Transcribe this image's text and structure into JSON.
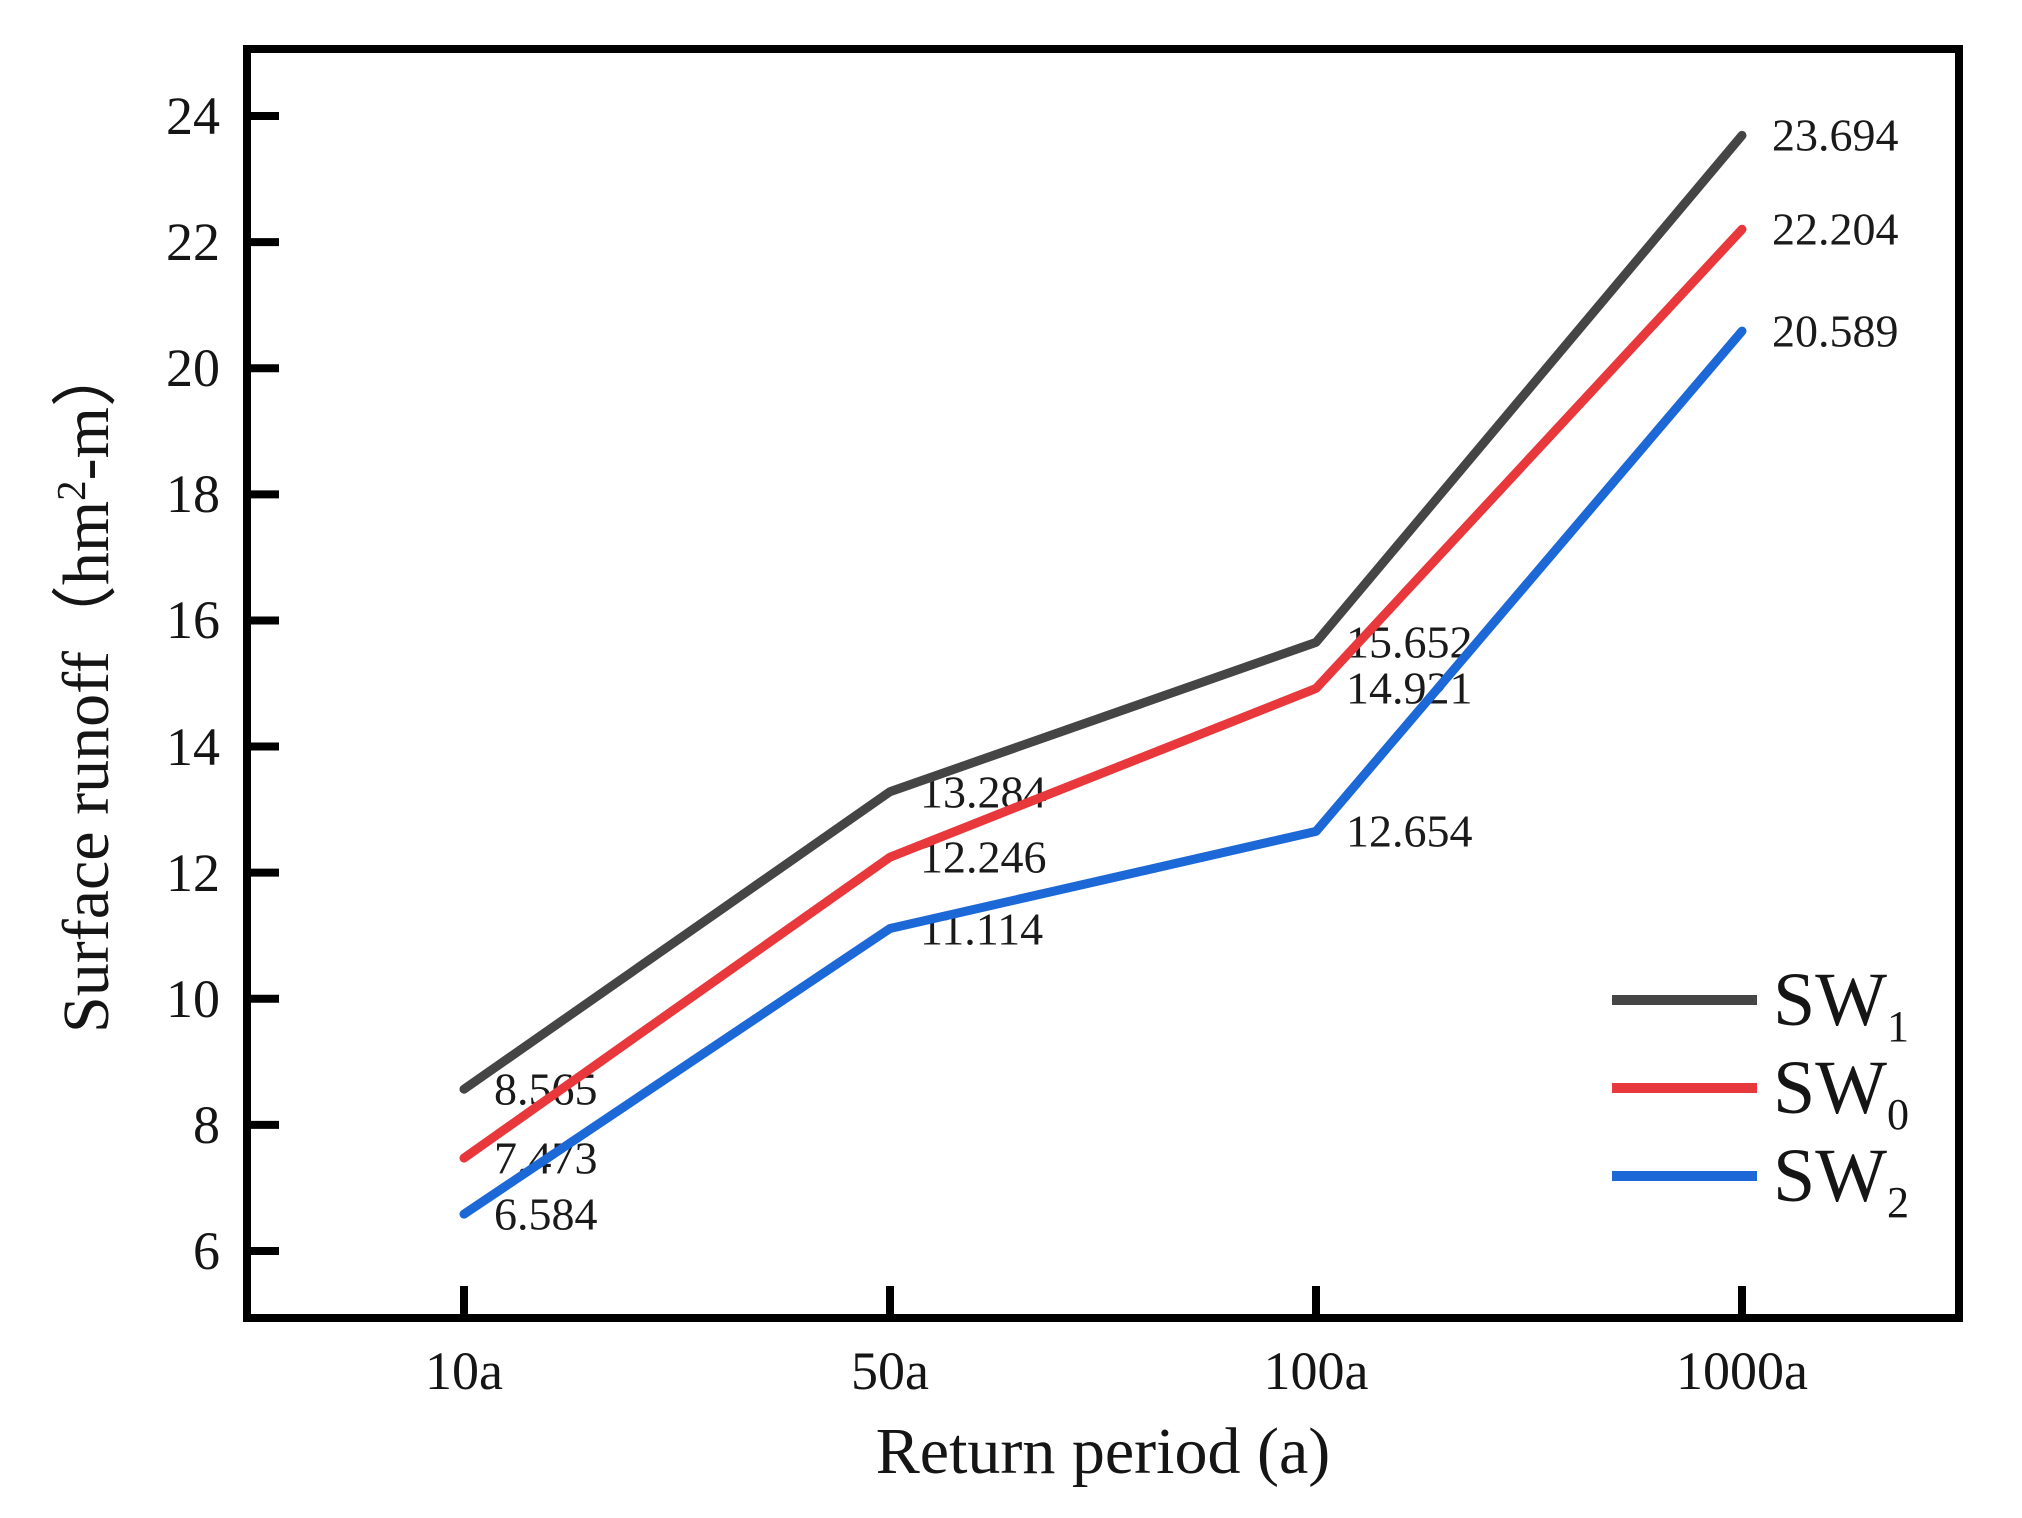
{
  "figure": {
    "x_axis_title": "Return period (a)",
    "y_axis_title_prefix": "Surface runoff（hm",
    "y_axis_title_sup": "2",
    "y_axis_title_suffix": "-m）"
  },
  "chart_data": {
    "type": "line",
    "title": "",
    "xlabel": "Return period (a)",
    "ylabel": "Surface runoff（hm²-m）",
    "categories": [
      "10a",
      "50a",
      "100a",
      "1000a"
    ],
    "series": [
      {
        "name": "SW",
        "sub": "1",
        "color": "#454545",
        "values": [
          8.565,
          13.284,
          15.652,
          23.694
        ]
      },
      {
        "name": "SW",
        "sub": "0",
        "color": "#e8383c",
        "values": [
          7.473,
          12.246,
          14.921,
          22.204
        ]
      },
      {
        "name": "SW",
        "sub": "2",
        "color": "#1c68d6",
        "values": [
          6.584,
          11.114,
          12.654,
          20.589
        ]
      }
    ],
    "ylim": [
      5,
      25
    ],
    "y_ticks": [
      6,
      8,
      10,
      12,
      14,
      16,
      18,
      20,
      22,
      24
    ],
    "grid": false,
    "legend_position": "inside-bottom-right",
    "value_labels": true,
    "value_label_decimals": 3,
    "axis_color": "#000000",
    "text_color": "#151515"
  }
}
